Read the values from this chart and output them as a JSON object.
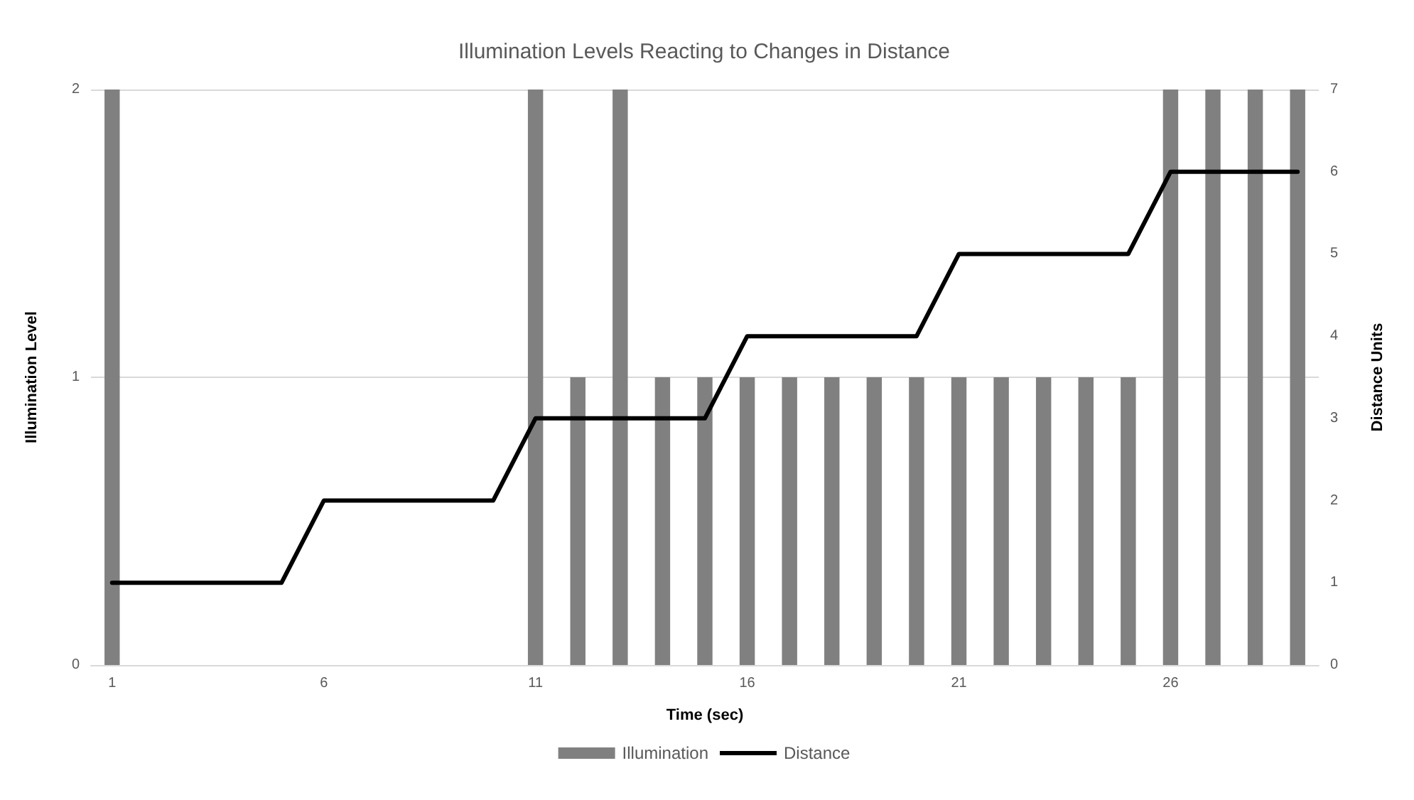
{
  "chart_data": {
    "type": "bar",
    "title": "Illumination Levels Reacting to Changes in Distance",
    "xlabel": "Time (sec)",
    "ylabel": "Illumination Level",
    "y2label": "Distance Units",
    "categories": [
      "1",
      null,
      null,
      null,
      null,
      "6",
      null,
      null,
      null,
      null,
      "11",
      null,
      null,
      null,
      null,
      "16",
      null,
      null,
      null,
      null,
      "21",
      null,
      null,
      null,
      null,
      "26",
      null,
      null,
      null
    ],
    "series": [
      {
        "name": "Illumination",
        "color": "#808080",
        "values": [
          2,
          0,
          0,
          0,
          0,
          0,
          0,
          0,
          0,
          0,
          2,
          1,
          2,
          1,
          1,
          1,
          1,
          1,
          1,
          1,
          1,
          1,
          1,
          1,
          1,
          2,
          2,
          2,
          2
        ]
      },
      {
        "name": "Distance",
        "type": "line",
        "axis": "y2",
        "color": "#000000",
        "values": [
          1,
          1,
          1,
          1,
          1,
          2,
          2,
          2,
          2,
          2,
          3,
          3,
          3,
          3,
          3,
          4,
          4,
          4,
          4,
          4,
          5,
          5,
          5,
          5,
          5,
          6,
          6,
          6,
          6
        ]
      }
    ],
    "ylim": [
      0,
      2
    ],
    "yticks": [
      0,
      1,
      2
    ],
    "y2lim": [
      0,
      7
    ],
    "y2ticks": [
      0,
      1,
      2,
      3,
      4,
      5,
      6,
      7
    ],
    "grid": "y",
    "legend": "bottom",
    "marker": "none",
    "line_style": "solid"
  }
}
